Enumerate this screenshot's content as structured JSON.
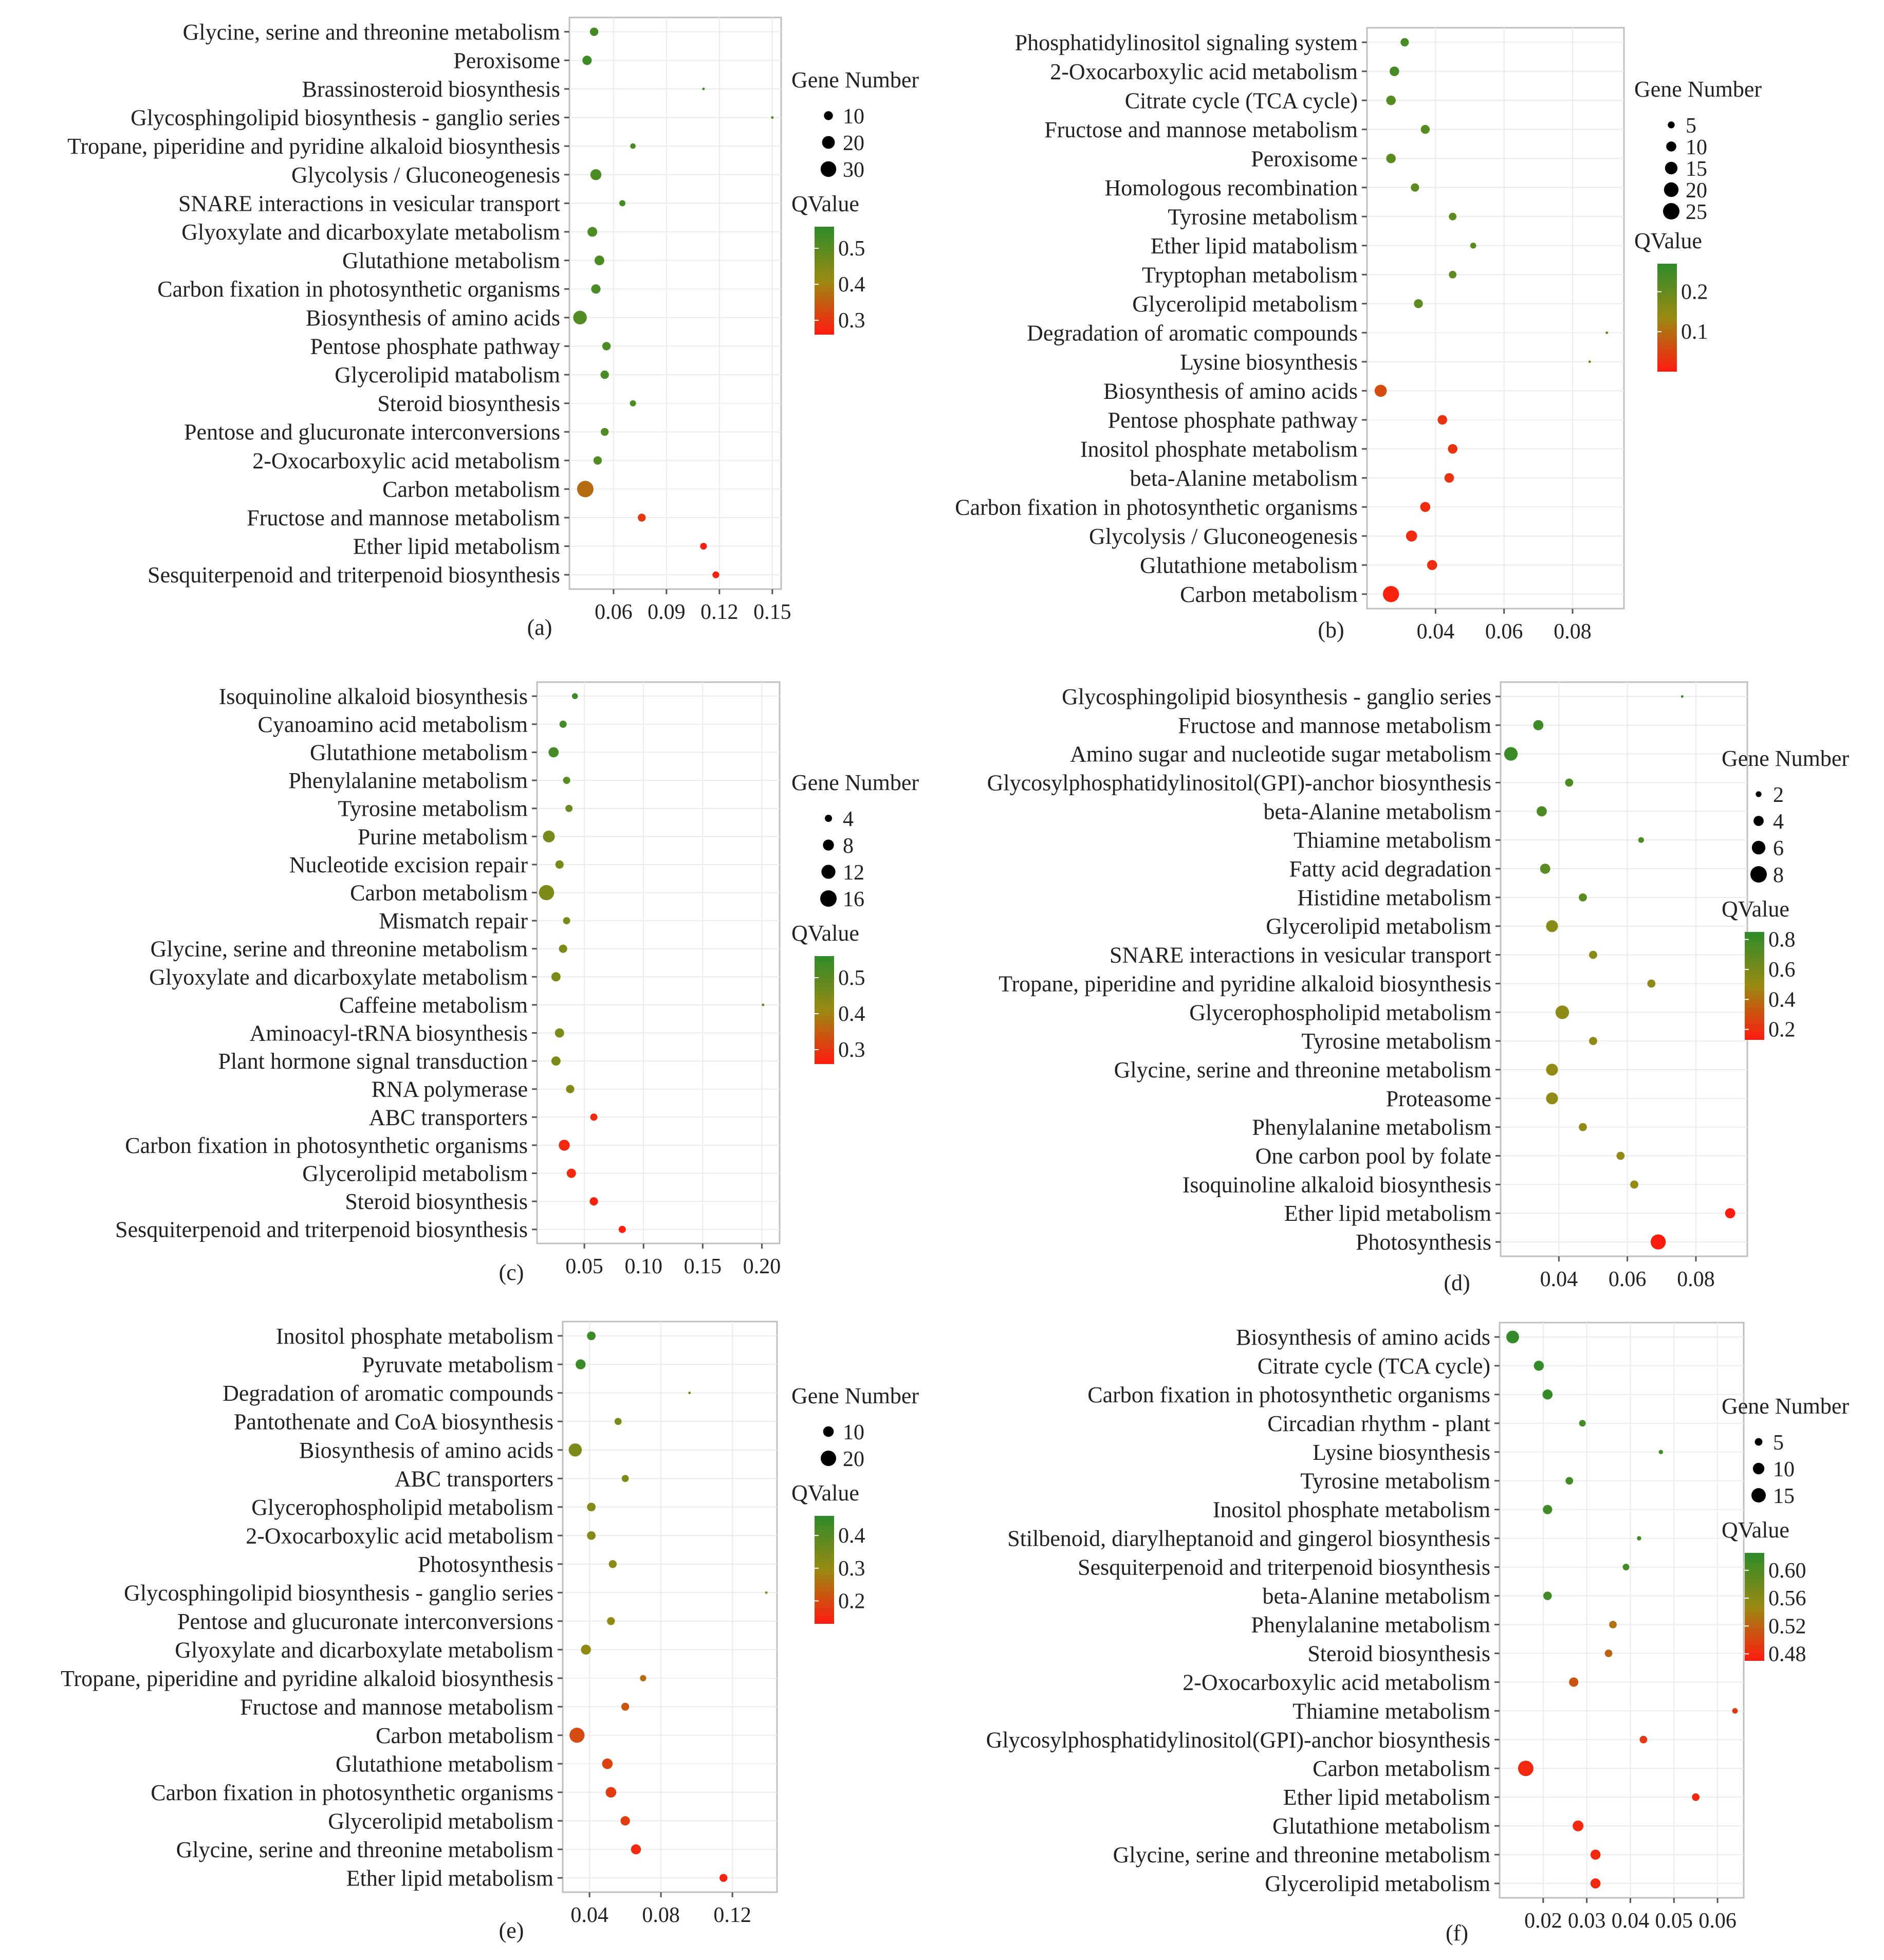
{
  "figure": {
    "size_legend_title": "Gene Number",
    "color_legend_title": "QValue",
    "colors": {
      "low_q": "#ff1a0f",
      "mid_q": "#9a8a12",
      "high_q": "#2e8b2b",
      "panel_border": "#bfbfbf",
      "grid": "#ebebeb"
    }
  },
  "chart_data": [
    {
      "panel": "(a)",
      "type": "scatter",
      "xlim": [
        0.035,
        0.155
      ],
      "xticks": [
        0.06,
        0.09,
        0.12,
        0.15
      ],
      "qlim": [
        0.26,
        0.56
      ],
      "qticks": [
        0.5,
        0.4,
        0.3
      ],
      "size_legend": [
        10,
        20,
        30
      ],
      "size_range": [
        5,
        32
      ],
      "points": [
        {
          "term": "Glycine, serine and threonine metabolism",
          "x": 0.049,
          "gene": 9,
          "q": 0.53
        },
        {
          "term": "Peroxisome",
          "x": 0.045,
          "gene": 11,
          "q": 0.54
        },
        {
          "term": "Brassinosteroid biosynthesis",
          "x": 0.111,
          "gene": 1,
          "q": 0.54
        },
        {
          "term": "Glycosphingolipid biosynthesis - ganglio series",
          "x": 0.15,
          "gene": 1,
          "q": 0.53
        },
        {
          "term": "Tropane, piperidine and pyridine alkaloid biosynthesis",
          "x": 0.071,
          "gene": 4,
          "q": 0.53
        },
        {
          "term": "Glycolysis / Gluconeogenesis",
          "x": 0.05,
          "gene": 15,
          "q": 0.52
        },
        {
          "term": "SNARE interactions in vesicular transport",
          "x": 0.065,
          "gene": 5,
          "q": 0.53
        },
        {
          "term": "Glyoxylate and dicarboxylate metabolism",
          "x": 0.048,
          "gene": 12,
          "q": 0.52
        },
        {
          "term": "Glutathione metabolism",
          "x": 0.052,
          "gene": 12,
          "q": 0.52
        },
        {
          "term": "Carbon fixation in photosynthetic organisms",
          "x": 0.05,
          "gene": 11,
          "q": 0.52
        },
        {
          "term": "Biosynthesis of amino acids",
          "x": 0.041,
          "gene": 23,
          "q": 0.51
        },
        {
          "term": "Pentose phosphate pathway",
          "x": 0.056,
          "gene": 9,
          "q": 0.52
        },
        {
          "term": "Glycerolipid matabolism",
          "x": 0.055,
          "gene": 9,
          "q": 0.52
        },
        {
          "term": "Steroid biosynthesis",
          "x": 0.071,
          "gene": 5,
          "q": 0.52
        },
        {
          "term": "Pentose and glucuronate interconversions",
          "x": 0.055,
          "gene": 8,
          "q": 0.51
        },
        {
          "term": "2-Oxocarboxylic acid metabolism",
          "x": 0.051,
          "gene": 9,
          "q": 0.51
        },
        {
          "term": "Carbon metabolism",
          "x": 0.044,
          "gene": 33,
          "q": 0.37
        },
        {
          "term": "Fructose and mannose metabolism",
          "x": 0.076,
          "gene": 8,
          "q": 0.3
        },
        {
          "term": "Ether lipid metabolism",
          "x": 0.111,
          "gene": 6,
          "q": 0.27
        },
        {
          "term": "Sesquiterpenoid and triterpenoid biosynthesis",
          "x": 0.118,
          "gene": 6,
          "q": 0.27
        }
      ]
    },
    {
      "panel": "(b)",
      "type": "scatter",
      "xlim": [
        0.02,
        0.095
      ],
      "xticks": [
        0.04,
        0.06,
        0.08
      ],
      "qlim": [
        0.0,
        0.27
      ],
      "qticks": [
        0.2,
        0.1
      ],
      "size_legend": [
        5,
        10,
        15,
        20,
        25
      ],
      "size_range": [
        5,
        32
      ],
      "points": [
        {
          "term": "Phosphatidylinositol signaling system",
          "x": 0.031,
          "gene": 7,
          "q": 0.24
        },
        {
          "term": "2-Oxocarboxylic acid metabolism",
          "x": 0.028,
          "gene": 9,
          "q": 0.24
        },
        {
          "term": "Citrate cycle (TCA cycle)",
          "x": 0.027,
          "gene": 9,
          "q": 0.22
        },
        {
          "term": "Fructose and mannose metabolism",
          "x": 0.037,
          "gene": 8,
          "q": 0.22
        },
        {
          "term": "Peroxisome",
          "x": 0.027,
          "gene": 9,
          "q": 0.21
        },
        {
          "term": "Homologous recombination",
          "x": 0.034,
          "gene": 7,
          "q": 0.21
        },
        {
          "term": "Tyrosine metabolism",
          "x": 0.045,
          "gene": 6,
          "q": 0.21
        },
        {
          "term": "Ether lipid matabolism",
          "x": 0.051,
          "gene": 4,
          "q": 0.21
        },
        {
          "term": "Tryptophan metabolism",
          "x": 0.045,
          "gene": 6,
          "q": 0.21
        },
        {
          "term": "Glycerolipid metabolism",
          "x": 0.035,
          "gene": 8,
          "q": 0.21
        },
        {
          "term": "Degradation of aromatic compounds",
          "x": 0.09,
          "gene": 1,
          "q": 0.21
        },
        {
          "term": "Lysine biosynthesis",
          "x": 0.085,
          "gene": 1,
          "q": 0.2
        },
        {
          "term": "Biosynthesis of amino acids",
          "x": 0.024,
          "gene": 14,
          "q": 0.06
        },
        {
          "term": "Pentose phosphate pathway",
          "x": 0.042,
          "gene": 9,
          "q": 0.03
        },
        {
          "term": "Inositol phosphate metabolism",
          "x": 0.045,
          "gene": 9,
          "q": 0.03
        },
        {
          "term": "beta-Alanine metabolism",
          "x": 0.044,
          "gene": 9,
          "q": 0.03
        },
        {
          "term": "Carbon fixation in photosynthetic organisms",
          "x": 0.037,
          "gene": 10,
          "q": 0.02
        },
        {
          "term": "Glycolysis / Gluconeogenesis",
          "x": 0.033,
          "gene": 12,
          "q": 0.02
        },
        {
          "term": "Glutathione metabolism",
          "x": 0.039,
          "gene": 10,
          "q": 0.02
        },
        {
          "term": "Carbon metabolism",
          "x": 0.027,
          "gene": 24,
          "q": 0.01
        }
      ]
    },
    {
      "panel": "(c)",
      "type": "scatter",
      "xlim": [
        0.01,
        0.215
      ],
      "xticks": [
        0.05,
        0.1,
        0.15,
        0.2
      ],
      "qlim": [
        0.26,
        0.56
      ],
      "qticks": [
        0.5,
        0.4,
        0.3
      ],
      "size_legend": [
        4,
        8,
        12,
        16
      ],
      "size_range": [
        5,
        32
      ],
      "points": [
        {
          "term": "Isoquinoline alkaloid biosynthesis",
          "x": 0.042,
          "gene": 3,
          "q": 0.54
        },
        {
          "term": "Cyanoamino acid metabolism",
          "x": 0.032,
          "gene": 4,
          "q": 0.53
        },
        {
          "term": "Glutathione metabolism",
          "x": 0.024,
          "gene": 7,
          "q": 0.53
        },
        {
          "term": "Phenylalanine metabolism",
          "x": 0.035,
          "gene": 4,
          "q": 0.5
        },
        {
          "term": "Tyrosine metabolism",
          "x": 0.037,
          "gene": 4,
          "q": 0.48
        },
        {
          "term": "Purine metabolism",
          "x": 0.02,
          "gene": 9,
          "q": 0.46
        },
        {
          "term": "Nucleotide excision repair",
          "x": 0.029,
          "gene": 5,
          "q": 0.46
        },
        {
          "term": "Carbon metabolism",
          "x": 0.018,
          "gene": 14,
          "q": 0.45
        },
        {
          "term": "Mismatch repair",
          "x": 0.035,
          "gene": 4,
          "q": 0.45
        },
        {
          "term": "Glycine, serine and threonine metabolism",
          "x": 0.032,
          "gene": 5,
          "q": 0.45
        },
        {
          "term": "Glyoxylate and dicarboxylate metabolism",
          "x": 0.026,
          "gene": 6,
          "q": 0.45
        },
        {
          "term": "Caffeine metabolism",
          "x": 0.201,
          "gene": 1,
          "q": 0.48
        },
        {
          "term": "Aminoacyl-tRNA biosynthesis",
          "x": 0.029,
          "gene": 6,
          "q": 0.45
        },
        {
          "term": "Plant hormone signal transduction",
          "x": 0.026,
          "gene": 6,
          "q": 0.45
        },
        {
          "term": "RNA polymerase",
          "x": 0.038,
          "gene": 5,
          "q": 0.44
        },
        {
          "term": "ABC transporters",
          "x": 0.058,
          "gene": 4,
          "q": 0.28
        },
        {
          "term": "Carbon fixation in photosynthetic organisms",
          "x": 0.033,
          "gene": 8,
          "q": 0.28
        },
        {
          "term": "Glycerolipid metabolism",
          "x": 0.039,
          "gene": 6,
          "q": 0.28
        },
        {
          "term": "Steroid biosynthesis",
          "x": 0.058,
          "gene": 5,
          "q": 0.27
        },
        {
          "term": "Sesquiterpenoid and triterpenoid biosynthesis",
          "x": 0.082,
          "gene": 4,
          "q": 0.27
        }
      ]
    },
    {
      "panel": "(d)",
      "type": "scatter",
      "xlim": [
        0.023,
        0.095
      ],
      "xticks": [
        0.04,
        0.06,
        0.08
      ],
      "qlim": [
        0.13,
        0.85
      ],
      "qticks": [
        0.8,
        0.6,
        0.4,
        0.2
      ],
      "size_legend": [
        2,
        4,
        6,
        8
      ],
      "size_range": [
        5,
        32
      ],
      "points": [
        {
          "term": "Glycosphingolipid biosynthesis - ganglio series",
          "x": 0.076,
          "gene": 1,
          "q": 0.8
        },
        {
          "term": "Fructose and mannose metabolism",
          "x": 0.034,
          "gene": 4,
          "q": 0.8
        },
        {
          "term": "Amino sugar and nucleotide sugar metabolism",
          "x": 0.026,
          "gene": 6,
          "q": 0.8
        },
        {
          "term": "Glycosylphosphatidylinositol(GPI)-anchor biosynthesis",
          "x": 0.043,
          "gene": 3,
          "q": 0.75
        },
        {
          "term": "beta-Alanine metabolism",
          "x": 0.035,
          "gene": 4,
          "q": 0.75
        },
        {
          "term": "Thiamine metabolism",
          "x": 0.064,
          "gene": 2,
          "q": 0.74
        },
        {
          "term": "Fatty acid degradation",
          "x": 0.036,
          "gene": 4,
          "q": 0.7
        },
        {
          "term": "Histidine metabolism",
          "x": 0.047,
          "gene": 3,
          "q": 0.7
        },
        {
          "term": "Glycerolipid metabolism",
          "x": 0.038,
          "gene": 5,
          "q": 0.55
        },
        {
          "term": "SNARE interactions in vesicular transport",
          "x": 0.05,
          "gene": 3,
          "q": 0.55
        },
        {
          "term": "Tropane, piperidine and pyridine alkaloid biosynthesis",
          "x": 0.067,
          "gene": 3,
          "q": 0.53
        },
        {
          "term": "Glycerophospholipid metabolism",
          "x": 0.041,
          "gene": 6,
          "q": 0.53
        },
        {
          "term": "Tyrosine metabolism",
          "x": 0.05,
          "gene": 3,
          "q": 0.53
        },
        {
          "term": "Glycine, serine and threonine metabolism",
          "x": 0.038,
          "gene": 5,
          "q": 0.52
        },
        {
          "term": "Proteasome",
          "x": 0.038,
          "gene": 5,
          "q": 0.52
        },
        {
          "term": "Phenylalanine metabolism",
          "x": 0.047,
          "gene": 3,
          "q": 0.52
        },
        {
          "term": "One carbon pool by folate",
          "x": 0.058,
          "gene": 3,
          "q": 0.51
        },
        {
          "term": "Isoquinoline alkaloid biosynthesis",
          "x": 0.062,
          "gene": 3,
          "q": 0.51
        },
        {
          "term": "Ether lipid metabolism",
          "x": 0.09,
          "gene": 4,
          "q": 0.14
        },
        {
          "term": "Photosynthesis",
          "x": 0.069,
          "gene": 7,
          "q": 0.14
        }
      ]
    },
    {
      "panel": "(e)",
      "type": "scatter",
      "xlim": [
        0.025,
        0.145
      ],
      "xticks": [
        0.04,
        0.08,
        0.12
      ],
      "qlim": [
        0.13,
        0.46
      ],
      "qticks": [
        0.4,
        0.3,
        0.2
      ],
      "size_legend": [
        10,
        20
      ],
      "size_range": [
        5,
        30
      ],
      "points": [
        {
          "term": "Inositol phosphate metabolism",
          "x": 0.041,
          "gene": 7,
          "q": 0.44
        },
        {
          "term": "Pyruvate metabolism",
          "x": 0.035,
          "gene": 9,
          "q": 0.44
        },
        {
          "term": "Degradation of aromatic compounds",
          "x": 0.096,
          "gene": 1,
          "q": 0.34
        },
        {
          "term": "Pantothenate and CoA biosynthesis",
          "x": 0.056,
          "gene": 5,
          "q": 0.34
        },
        {
          "term": "Biosynthesis of amino acids",
          "x": 0.032,
          "gene": 15,
          "q": 0.34
        },
        {
          "term": "ABC transporters",
          "x": 0.06,
          "gene": 5,
          "q": 0.34
        },
        {
          "term": "Glycerophospholipid metabolism",
          "x": 0.041,
          "gene": 7,
          "q": 0.33
        },
        {
          "term": "2-Oxocarboxylic acid metabolism",
          "x": 0.041,
          "gene": 7,
          "q": 0.33
        },
        {
          "term": "Photosynthesis",
          "x": 0.053,
          "gene": 6,
          "q": 0.32
        },
        {
          "term": "Glycosphingolipid biosynthesis - ganglio series",
          "x": 0.139,
          "gene": 1,
          "q": 0.32
        },
        {
          "term": "Pentose and glucuronate interconversions",
          "x": 0.052,
          "gene": 6,
          "q": 0.31
        },
        {
          "term": "Glyoxylate and dicarboxylate metabolism",
          "x": 0.038,
          "gene": 9,
          "q": 0.31
        },
        {
          "term": "Tropane, piperidine and pyridine alkaloid biosynthesis",
          "x": 0.07,
          "gene": 4,
          "q": 0.25
        },
        {
          "term": "Fructose and mannose metabolism",
          "x": 0.06,
          "gene": 6,
          "q": 0.22
        },
        {
          "term": "Carbon metabolism",
          "x": 0.033,
          "gene": 19,
          "q": 0.2
        },
        {
          "term": "Glutathione metabolism",
          "x": 0.05,
          "gene": 10,
          "q": 0.19
        },
        {
          "term": "Carbon fixation in photosynthetic organisms",
          "x": 0.052,
          "gene": 10,
          "q": 0.18
        },
        {
          "term": "Glycerolipid metabolism",
          "x": 0.06,
          "gene": 8,
          "q": 0.18
        },
        {
          "term": "Glycine, serine and threonine metabolism",
          "x": 0.066,
          "gene": 9,
          "q": 0.15
        },
        {
          "term": "Ether lipid metabolism",
          "x": 0.115,
          "gene": 6,
          "q": 0.14
        }
      ]
    },
    {
      "panel": "(f)",
      "type": "scatter",
      "xlim": [
        0.01,
        0.066
      ],
      "xticks": [
        0.02,
        0.03,
        0.04,
        0.05,
        0.06
      ],
      "qlim": [
        0.47,
        0.625
      ],
      "qticks": [
        0.6,
        0.56,
        0.52,
        0.48
      ],
      "size_legend": [
        5,
        10,
        15
      ],
      "size_range": [
        5,
        30
      ],
      "points": [
        {
          "term": "Biosynthesis of amino acids",
          "x": 0.013,
          "gene": 12,
          "q": 0.62
        },
        {
          "term": "Citrate cycle (TCA cycle)",
          "x": 0.019,
          "gene": 8,
          "q": 0.62
        },
        {
          "term": "Carbon fixation in photosynthetic organisms",
          "x": 0.021,
          "gene": 8,
          "q": 0.62
        },
        {
          "term": "Circadian rhythm - plant",
          "x": 0.029,
          "gene": 4,
          "q": 0.61
        },
        {
          "term": "Lysine biosynthesis",
          "x": 0.047,
          "gene": 2,
          "q": 0.61
        },
        {
          "term": "Tyrosine metabolism",
          "x": 0.026,
          "gene": 5,
          "q": 0.61
        },
        {
          "term": "Inositol phosphate metabolism",
          "x": 0.021,
          "gene": 7,
          "q": 0.61
        },
        {
          "term": "Stilbenoid, diarylheptanoid and gingerol biosynthesis",
          "x": 0.042,
          "gene": 2,
          "q": 0.61
        },
        {
          "term": "Sesquiterpenoid and triterpenoid biosynthesis",
          "x": 0.039,
          "gene": 4,
          "q": 0.61
        },
        {
          "term": "beta-Alanine metabolism",
          "x": 0.021,
          "gene": 6,
          "q": 0.61
        },
        {
          "term": "Phenylalanine metabolism",
          "x": 0.036,
          "gene": 5,
          "q": 0.53
        },
        {
          "term": "Steroid biosynthesis",
          "x": 0.035,
          "gene": 5,
          "q": 0.52
        },
        {
          "term": "2-Oxocarboxylic acid metabolism",
          "x": 0.027,
          "gene": 7,
          "q": 0.51
        },
        {
          "term": "Thiamine metabolism",
          "x": 0.064,
          "gene": 3,
          "q": 0.49
        },
        {
          "term": "Glycosylphosphatidylinositol(GPI)-anchor biosynthesis",
          "x": 0.043,
          "gene": 5,
          "q": 0.49
        },
        {
          "term": "Carbon metabolism",
          "x": 0.016,
          "gene": 17,
          "q": 0.48
        },
        {
          "term": "Ether lipid metabolism",
          "x": 0.055,
          "gene": 5,
          "q": 0.48
        },
        {
          "term": "Glutathione metabolism",
          "x": 0.028,
          "gene": 9,
          "q": 0.48
        },
        {
          "term": "Glycine, serine and threonine metabolism",
          "x": 0.032,
          "gene": 8,
          "q": 0.48
        },
        {
          "term": "Glycerolipid metabolism",
          "x": 0.032,
          "gene": 8,
          "q": 0.48
        }
      ]
    }
  ]
}
